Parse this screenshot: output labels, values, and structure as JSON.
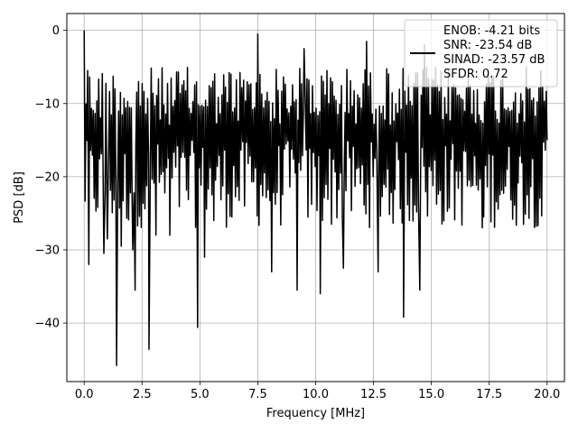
{
  "chart_data": {
    "type": "line",
    "title": "",
    "xlabel": "Frequency [MHz]",
    "ylabel": "PSD [dB]",
    "xlim": [
      -0.75,
      20.75
    ],
    "ylim": [
      -48,
      2.3
    ],
    "xticks": [
      0.0,
      2.5,
      5.0,
      7.5,
      10.0,
      12.5,
      15.0,
      17.5,
      20.0
    ],
    "xtick_labels": [
      "0.0",
      "2.5",
      "5.0",
      "7.5",
      "10.0",
      "12.5",
      "15.0",
      "17.5",
      "20.0"
    ],
    "yticks": [
      0,
      -10,
      -20,
      -30,
      -40
    ],
    "ytick_labels": [
      "0",
      "−10",
      "−20",
      "−30",
      "−40"
    ],
    "grid": true,
    "legend_position": "top-right",
    "series": [
      {
        "name": "",
        "color": "#000000",
        "x_range": [
          0,
          20
        ],
        "points": 512,
        "typical_range": [
          -27,
          -5
        ],
        "notable_points": [
          {
            "x": 0.0,
            "y": 0.0
          },
          {
            "x": 0.15,
            "y": -5.5
          },
          {
            "x": 0.2,
            "y": -32.0
          },
          {
            "x": 0.85,
            "y": -30.5
          },
          {
            "x": 1.0,
            "y": -28.5
          },
          {
            "x": 1.4,
            "y": -45.8
          },
          {
            "x": 1.6,
            "y": -29.5
          },
          {
            "x": 2.1,
            "y": -30.0
          },
          {
            "x": 2.2,
            "y": -35.5
          },
          {
            "x": 2.8,
            "y": -43.6
          },
          {
            "x": 3.1,
            "y": -28.0
          },
          {
            "x": 3.7,
            "y": -28.0
          },
          {
            "x": 4.9,
            "y": -40.6
          },
          {
            "x": 5.2,
            "y": -31.0
          },
          {
            "x": 5.6,
            "y": -26.0
          },
          {
            "x": 7.5,
            "y": -0.5
          },
          {
            "x": 8.1,
            "y": -33.0
          },
          {
            "x": 9.2,
            "y": -35.5
          },
          {
            "x": 9.5,
            "y": -2.5
          },
          {
            "x": 10.2,
            "y": -36.0
          },
          {
            "x": 11.2,
            "y": -32.5
          },
          {
            "x": 12.2,
            "y": -1.5
          },
          {
            "x": 12.7,
            "y": -33.0
          },
          {
            "x": 13.8,
            "y": -39.2
          },
          {
            "x": 14.5,
            "y": -35.5
          },
          {
            "x": 14.7,
            "y": -2.0
          },
          {
            "x": 17.2,
            "y": -27.0
          },
          {
            "x": 20.0,
            "y": -15.0
          }
        ]
      }
    ],
    "legend": {
      "lines": [
        "ENOB: -4.21 bits",
        "SNR: -23.54 dB",
        "SINAD: -23.57 dB",
        "SFDR: 0.72"
      ]
    }
  }
}
